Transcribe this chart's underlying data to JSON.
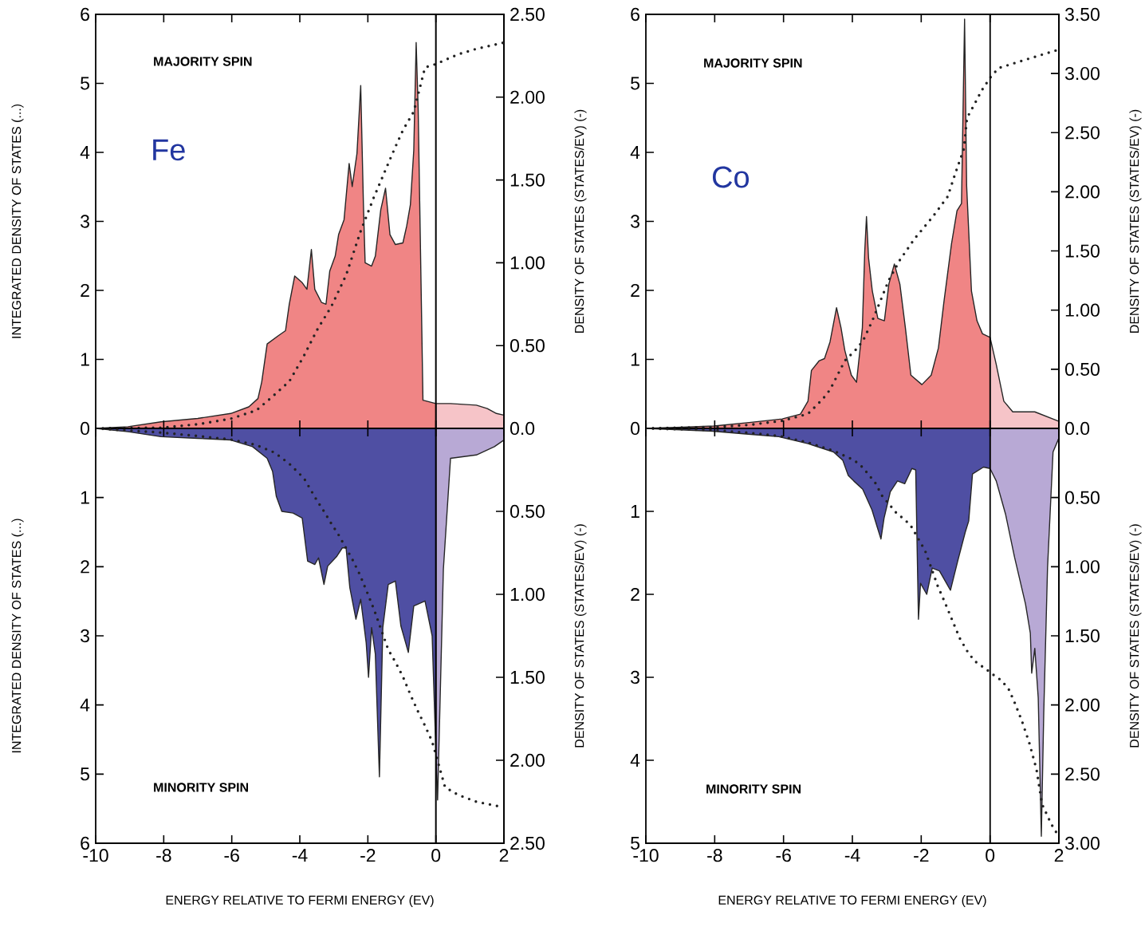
{
  "chart_data": [
    {
      "type": "area",
      "ylabel": "INTEGRATED DENSITY OF STATES (...)",
      "y2label": "DENSITY OF STATES (STATES/EV) (-)",
      "annotations": [
        "MAJORITY SPIN",
        "Fe"
      ],
      "tick_labels": "y",
      "xlim": [
        -10,
        2
      ],
      "xticks": [
        -10,
        -8,
        -6,
        -4,
        -2,
        0,
        2
      ],
      "ylim": [
        0,
        6
      ],
      "yticks": [
        0,
        1,
        2,
        3,
        4,
        5,
        6
      ],
      "y2lim": [
        0,
        2.5
      ],
      "y2ticks": [
        {
          "value": 0,
          "label": "0.0"
        },
        {
          "value": 0.5,
          "label": "0.50"
        },
        {
          "value": 1,
          "label": "1.00"
        },
        {
          "value": 1.5,
          "label": "1.50"
        },
        {
          "value": 2,
          "label": "2.00"
        },
        {
          "value": 2.5,
          "label": "2.50"
        }
      ],
      "ref_lines": [
        {
          "axis": "x",
          "value": 0
        }
      ],
      "series": [
        {
          "axis": "y2",
          "color": "#f08585",
          "x": [
            -10,
            -9.05,
            -8.08,
            -7,
            -6.03,
            -5.5,
            -5.23,
            -5.12,
            -4.96,
            -4.63,
            -4.42,
            -4.31,
            -4.15,
            -3.93,
            -3.79,
            -3.66,
            -3.56,
            -3.36,
            -3.23,
            -3.12,
            -2.96,
            -2.86,
            -2.7,
            -2.55,
            -2.46,
            -2.32,
            -2.21,
            -2.13,
            -2.08,
            -1.89,
            -1.78,
            -1.62,
            -1.48,
            -1.35,
            -1.19,
            -0.97,
            -0.86,
            -0.75,
            -0.65,
            -0.58,
            -0.52,
            -0.38,
            0
          ],
          "values": [
            0,
            0.01,
            0.04,
            0.06,
            0.09,
            0.13,
            0.18,
            0.28,
            0.51,
            0.56,
            0.59,
            0.75,
            0.92,
            0.88,
            0.84,
            1.08,
            0.84,
            0.76,
            0.75,
            0.95,
            1.04,
            1.17,
            1.26,
            1.6,
            1.46,
            1.66,
            2.07,
            1.35,
            1.0,
            0.98,
            1.04,
            1.32,
            1.45,
            1.17,
            1.11,
            1.12,
            1.22,
            1.35,
            1.68,
            2.33,
            1.92,
            0.17,
            0.15
          ]
        },
        {
          "axis": "y2",
          "color": "#f6c4c8",
          "x": [
            0,
            0.43,
            1.19,
            1.51,
            1.78,
            2
          ],
          "values": [
            0.15,
            0.15,
            0.14,
            0.12,
            0.09,
            0.08
          ]
        },
        {
          "type": "line",
          "line_style": "dotted",
          "color": "#222222",
          "x": [
            -10,
            -8.08,
            -7,
            -6.03,
            -5.28,
            -4.85,
            -4.31,
            -3.88,
            -3.5,
            -3.07,
            -2.64,
            -2.21,
            -1.83,
            -1.4,
            -1.19,
            -0.97,
            -0.65,
            -0.32,
            0,
            0.65,
            1.19,
            2
          ],
          "values": [
            0,
            0.01,
            0.06,
            0.14,
            0.26,
            0.44,
            0.68,
            1.05,
            1.42,
            1.77,
            2.22,
            2.86,
            3.34,
            3.84,
            4.08,
            4.32,
            4.59,
            5.23,
            5.28,
            5.42,
            5.5,
            5.59
          ]
        }
      ]
    },
    {
      "type": "area",
      "xlabel": "ENERGY RELATIVE TO FERMI ENERGY (EV)",
      "ylabel": "INTEGRATED DENSITY OF STATES (...)",
      "y2label": "DENSITY OF STATES (STATES/EV) (-)",
      "annotations": [
        "MINORITY SPIN"
      ],
      "xlim": [
        -10,
        2
      ],
      "xticks": [
        -10,
        -8,
        -6,
        -4,
        -2,
        0,
        2
      ],
      "ylim": [
        6,
        0
      ],
      "yticks": [
        1,
        2,
        3,
        4,
        5,
        6
      ],
      "y2lim": [
        2.5,
        0
      ],
      "y2ticks": [
        {
          "value": 0.5,
          "label": "0.50"
        },
        {
          "value": 1,
          "label": "1.00"
        },
        {
          "value": 1.5,
          "label": "1.50"
        },
        {
          "value": 2,
          "label": "2.00"
        },
        {
          "value": 2.5,
          "label": "2.50"
        }
      ],
      "ref_lines": [
        {
          "axis": "x",
          "value": 0
        }
      ],
      "series": [
        {
          "axis": "y2",
          "color": "#4f4fa3",
          "x": [
            -10,
            -9.05,
            -8.08,
            -7,
            -6.03,
            -5.39,
            -4.96,
            -4.8,
            -4.69,
            -4.53,
            -4.2,
            -3.93,
            -3.77,
            -3.56,
            -3.45,
            -3.29,
            -3.18,
            -2.91,
            -2.75,
            -2.64,
            -2.53,
            -2.35,
            -2.21,
            -2.05,
            -1.98,
            -1.89,
            -1.78,
            -1.66,
            -1.56,
            -1.4,
            -1.19,
            -1.03,
            -0.81,
            -0.65,
            -0.32,
            -0.11,
            0
          ],
          "values": [
            0,
            0.02,
            0.05,
            0.06,
            0.07,
            0.11,
            0.18,
            0.26,
            0.41,
            0.5,
            0.51,
            0.54,
            0.8,
            0.82,
            0.78,
            0.94,
            0.83,
            0.77,
            0.72,
            0.72,
            0.96,
            1.15,
            1.03,
            1.29,
            1.5,
            1.2,
            1.36,
            2.1,
            1.2,
            0.94,
            0.92,
            1.19,
            1.35,
            1.07,
            1.04,
            1.25,
            1.95
          ]
        },
        {
          "axis": "y2",
          "color": "#b8a9d5",
          "x": [
            0,
            0.05,
            0.22,
            0.43,
            1.19,
            1.72,
            2
          ],
          "values": [
            1.95,
            2.24,
            0.85,
            0.18,
            0.16,
            0.11,
            0.07
          ]
        },
        {
          "type": "line",
          "line_style": "dotted",
          "color": "#222222",
          "x": [
            -10,
            -8.08,
            -7,
            -6.03,
            -5.28,
            -4.74,
            -4.31,
            -3.88,
            -3.5,
            -3.29,
            -3.07,
            -2.86,
            -2.46,
            -2.24,
            -2.03,
            -1.81,
            -1.4,
            -1.19,
            -0.97,
            -0.75,
            -0.54,
            -0.32,
            -0.11,
            0.27,
            0.65,
            1.19,
            2
          ],
          "values": [
            0,
            0.06,
            0.11,
            0.16,
            0.24,
            0.35,
            0.51,
            0.72,
            1.04,
            1.2,
            1.38,
            1.54,
            1.89,
            2.11,
            2.36,
            2.63,
            3.2,
            3.38,
            3.59,
            3.85,
            4.08,
            4.3,
            4.53,
            5.19,
            5.3,
            5.4,
            5.48
          ]
        }
      ]
    },
    {
      "type": "area",
      "y2label": "DENSITY OF STATES (STATES/EV) (-)",
      "annotations": [
        "MAJORITY SPIN",
        "Co"
      ],
      "tick_labels": "y",
      "xlim": [
        -10,
        2
      ],
      "xticks": [
        -10,
        -8,
        -6,
        -4,
        -2,
        0,
        2
      ],
      "ylim": [
        0,
        6
      ],
      "yticks": [
        0,
        1,
        2,
        3,
        4,
        5,
        6
      ],
      "y2lim": [
        0,
        3.5
      ],
      "y2ticks": [
        {
          "value": 0,
          "label": "0.0"
        },
        {
          "value": 0.5,
          "label": "0.50"
        },
        {
          "value": 1,
          "label": "1.00"
        },
        {
          "value": 1.5,
          "label": "1.50"
        },
        {
          "value": 2,
          "label": "2.00"
        },
        {
          "value": 2.5,
          "label": "2.50"
        },
        {
          "value": 3,
          "label": "3.00"
        },
        {
          "value": 3.5,
          "label": "3.50"
        }
      ],
      "ref_lines": [
        {
          "axis": "x",
          "value": 0
        }
      ],
      "series": [
        {
          "axis": "y2",
          "color": "#f08585",
          "x": [
            -10,
            -8.93,
            -8.02,
            -7,
            -6.04,
            -5.51,
            -5.29,
            -5.19,
            -4.97,
            -4.81,
            -4.65,
            -4.46,
            -4.33,
            -4.22,
            -4.03,
            -3.88,
            -3.71,
            -3.64,
            -3.59,
            -3.53,
            -3.42,
            -3.26,
            -3.07,
            -2.94,
            -2.78,
            -2.62,
            -2.46,
            -2.3,
            -1.98,
            -1.71,
            -1.5,
            -1.34,
            -1.12,
            -0.96,
            -0.83,
            -0.74,
            -0.68,
            -0.54,
            -0.38,
            -0.22,
            0
          ],
          "values": [
            0,
            0.01,
            0.02,
            0.05,
            0.08,
            0.12,
            0.23,
            0.49,
            0.57,
            0.59,
            0.73,
            1.02,
            0.85,
            0.66,
            0.45,
            0.39,
            0.85,
            1.5,
            1.79,
            1.44,
            1.16,
            0.93,
            0.91,
            1.22,
            1.39,
            1.22,
            0.85,
            0.45,
            0.37,
            0.45,
            0.68,
            1.07,
            1.56,
            1.84,
            1.9,
            3.46,
            2.05,
            1.16,
            0.91,
            0.8,
            0.77
          ]
        },
        {
          "axis": "y2",
          "color": "#f6c4c8",
          "x": [
            0,
            0.18,
            0.4,
            0.66,
            1.3,
            2
          ],
          "values": [
            0.77,
            0.54,
            0.23,
            0.14,
            0.14,
            0.06
          ]
        },
        {
          "type": "line",
          "line_style": "dotted",
          "color": "#222222",
          "x": [
            -10,
            -8.02,
            -7,
            -6.04,
            -5.29,
            -4.87,
            -4.65,
            -4.22,
            -3.9,
            -3.69,
            -3.42,
            -2.94,
            -2.62,
            -2.19,
            -1.66,
            -1.23,
            -1.02,
            -0.76,
            -0.67,
            -0.44,
            -0.24,
            0,
            0.24,
            0.88,
            2
          ],
          "values": [
            0,
            0.02,
            0.05,
            0.11,
            0.21,
            0.42,
            0.56,
            0.98,
            1.14,
            1.27,
            1.56,
            2.15,
            2.44,
            2.75,
            3.07,
            3.36,
            3.68,
            4.05,
            4.5,
            4.71,
            4.9,
            5.08,
            5.22,
            5.32,
            5.49
          ]
        }
      ]
    },
    {
      "type": "area",
      "xlabel": "ENERGY RELATIVE TO FERMI ENERGY (EV)",
      "y2label": "DENSITY OF STATES (STATES/EV) (-)",
      "annotations": [
        "MINORITY SPIN"
      ],
      "xlim": [
        -10,
        2
      ],
      "xticks": [
        -10,
        -8,
        -6,
        -4,
        -2,
        0,
        2
      ],
      "ylim": [
        5,
        0
      ],
      "yticks": [
        1,
        2,
        3,
        4,
        5
      ],
      "y2lim": [
        3,
        0
      ],
      "y2ticks": [
        {
          "value": 0.5,
          "label": "0.50"
        },
        {
          "value": 1,
          "label": "1.00"
        },
        {
          "value": 1.5,
          "label": "1.50"
        },
        {
          "value": 2,
          "label": "2.00"
        },
        {
          "value": 2.5,
          "label": "2.50"
        },
        {
          "value": 3,
          "label": "3.00"
        }
      ],
      "ref_lines": [
        {
          "axis": "x",
          "value": 0
        }
      ],
      "series": [
        {
          "axis": "y2",
          "color": "#4f4fa3",
          "x": [
            -10,
            -9.01,
            -8.06,
            -7.1,
            -6.14,
            -5.29,
            -4.55,
            -4.28,
            -4.12,
            -3.96,
            -3.7,
            -3.43,
            -3.27,
            -3.17,
            -3.08,
            -2.9,
            -2.69,
            -2.48,
            -2.27,
            -2.16,
            -2.08,
            -2.02,
            -1.84,
            -1.68,
            -1.47,
            -1.15,
            -0.94,
            -0.72,
            -0.62,
            -0.51,
            -0.19,
            0
          ],
          "values": [
            0,
            0.01,
            0.02,
            0.04,
            0.06,
            0.11,
            0.17,
            0.23,
            0.34,
            0.38,
            0.44,
            0.59,
            0.72,
            0.8,
            0.65,
            0.46,
            0.38,
            0.4,
            0.29,
            0.3,
            1.38,
            1.12,
            1.2,
            1.01,
            1.03,
            1.17,
            0.96,
            0.75,
            0.67,
            0.33,
            0.28,
            0.29
          ]
        },
        {
          "axis": "y2",
          "color": "#b8a9d5",
          "x": [
            0,
            0.18,
            0.45,
            0.71,
            1.03,
            1.17,
            1.21,
            1.3,
            1.4,
            1.49,
            1.56,
            1.67,
            1.83,
            2
          ],
          "values": [
            0.29,
            0.38,
            0.62,
            0.93,
            1.27,
            1.48,
            1.77,
            1.59,
            1.95,
            2.95,
            2.06,
            1.01,
            0.17,
            0.07
          ]
        },
        {
          "type": "line",
          "line_style": "dotted",
          "color": "#222222",
          "x": [
            -10,
            -8.06,
            -7.1,
            -6.14,
            -5.29,
            -4.55,
            -3.96,
            -3.75,
            -3.54,
            -3.33,
            -3.14,
            -2.74,
            -2.32,
            -1.89,
            -1.52,
            -1.31,
            -1.09,
            -0.88,
            -0.67,
            -0.46,
            -0.09,
            0.13,
            0.34,
            0.55,
            0.71,
            0.92,
            1.14,
            1.35,
            1.51,
            1.78,
            1.94
          ],
          "values": [
            0,
            0.02,
            0.05,
            0.09,
            0.17,
            0.27,
            0.38,
            0.45,
            0.55,
            0.66,
            0.81,
            1.01,
            1.16,
            1.47,
            1.9,
            2.1,
            2.32,
            2.53,
            2.68,
            2.8,
            2.91,
            2.98,
            3.04,
            3.15,
            3.3,
            3.52,
            3.79,
            4.11,
            4.53,
            4.77,
            4.88
          ]
        }
      ]
    }
  ]
}
